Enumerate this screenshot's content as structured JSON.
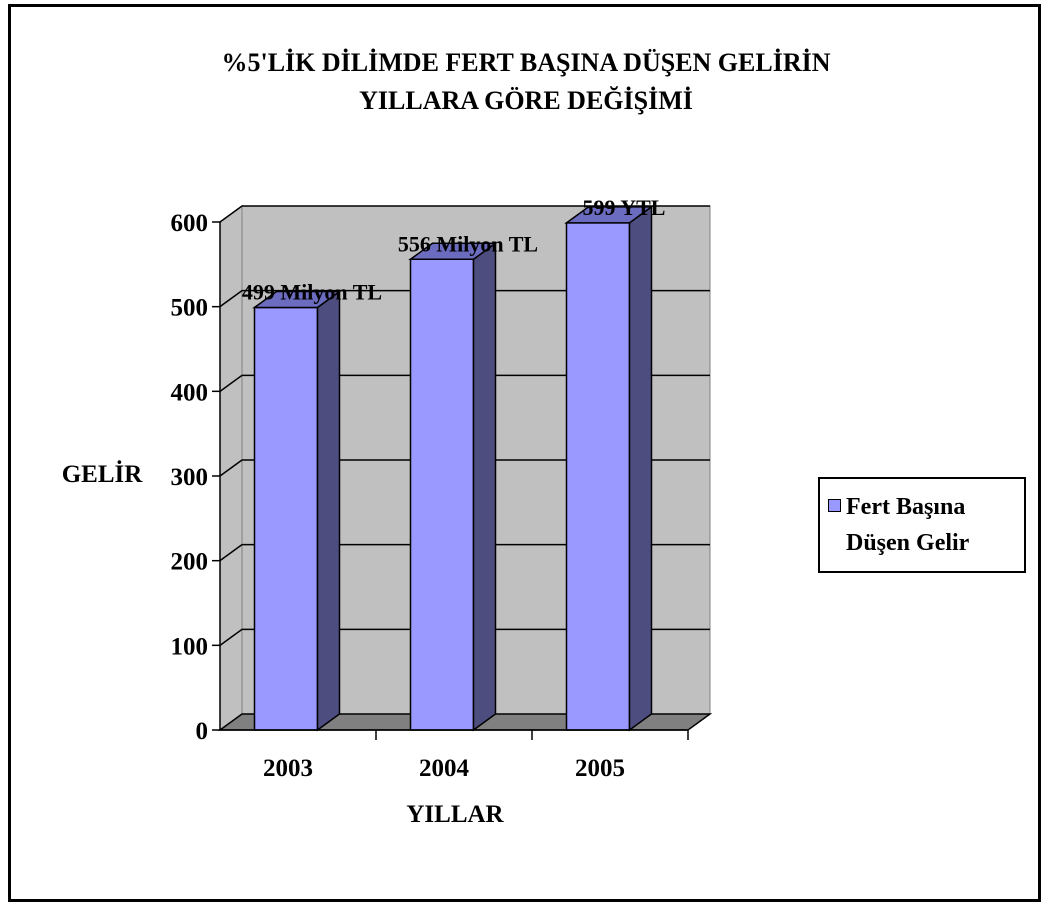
{
  "chart_data": {
    "type": "bar",
    "title_line1": "%5'LİK DİLİMDE FERT BAŞINA DÜŞEN GELİRİN",
    "title_line2": "YILLARA GÖRE DEĞİŞİMİ",
    "xlabel": "YILLAR",
    "ylabel": "GELİR",
    "categories": [
      "2003",
      "2004",
      "2005"
    ],
    "series": [
      {
        "name": "Fert Başına Düşen Gelir",
        "values": [
          499,
          556,
          599
        ]
      }
    ],
    "data_labels": [
      "499 Milyon TL",
      "556 Milyon TL",
      "599 YTL"
    ],
    "ylim": [
      0,
      600
    ],
    "yticks": [
      0,
      100,
      200,
      300,
      400,
      500,
      600
    ],
    "grid": true,
    "legend_position": "right",
    "colors": {
      "bar_front": "#9999ff",
      "bar_side": "#4d4d80",
      "bar_top": "#6b6bc0",
      "plot_wall": "#c0c0c0",
      "plot_floor": "#808080"
    }
  },
  "legend": {
    "line1": "Fert Başına",
    "line2": "Düşen Gelir"
  }
}
